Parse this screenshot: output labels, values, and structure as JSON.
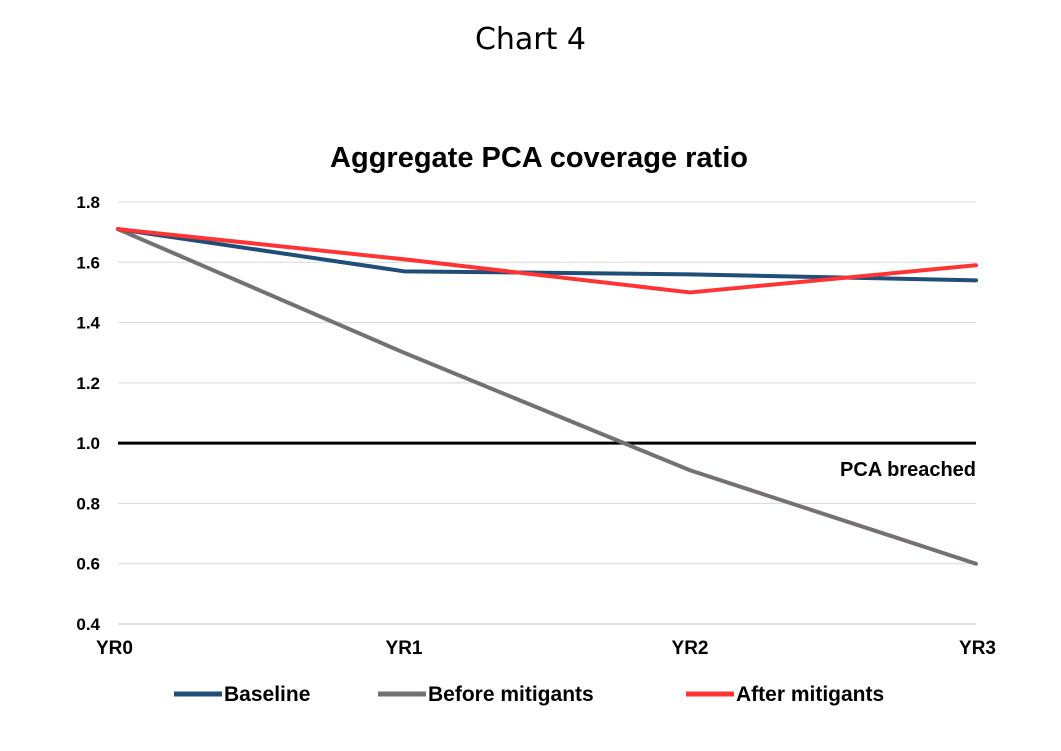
{
  "page": {
    "title": "Chart 4"
  },
  "chart_data": {
    "type": "line",
    "title": "Aggregate PCA coverage ratio",
    "xlabel": "",
    "ylabel": "",
    "categories": [
      "YR0",
      "YR1",
      "YR2",
      "YR3"
    ],
    "ylim": [
      0.4,
      1.8
    ],
    "yticks": [
      0.4,
      0.6,
      0.8,
      1.0,
      1.2,
      1.4,
      1.6,
      1.8
    ],
    "ytick_labels": [
      "0.4",
      "0.6",
      "0.8",
      "1.0",
      "1.2",
      "1.4",
      "1.6",
      "1.8"
    ],
    "grid": true,
    "legend_position": "bottom",
    "series": [
      {
        "name": "Baseline",
        "values": [
          1.71,
          1.57,
          1.56,
          1.54
        ],
        "color": "#1f4e79"
      },
      {
        "name": "Before mitigants",
        "values": [
          1.71,
          1.3,
          0.91,
          0.6
        ],
        "color": "#767171"
      },
      {
        "name": "After mitigants",
        "values": [
          1.71,
          1.61,
          1.5,
          1.59
        ],
        "color": "#ff3333"
      }
    ],
    "reference_line": {
      "value": 1.0,
      "color": "#000000"
    },
    "annotation": "PCA breached"
  }
}
